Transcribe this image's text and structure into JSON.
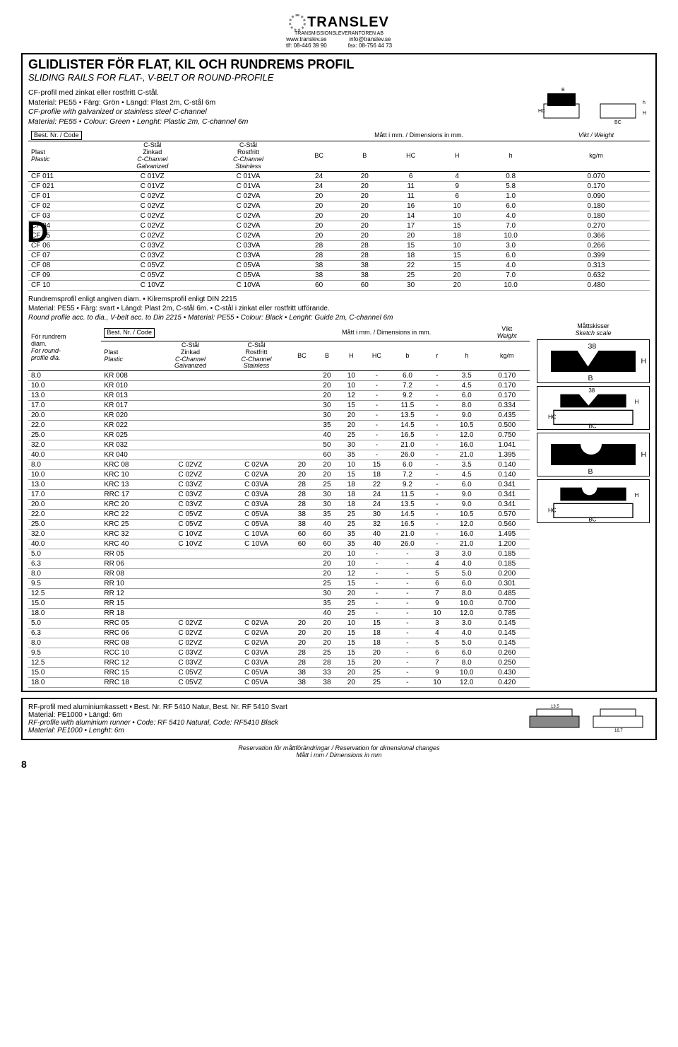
{
  "header": {
    "company": "TRANSLEV",
    "subcompany": "TRANSMISSIONSLEVERANTÖREN AB",
    "web": "www.translev.se",
    "email": "info@translev.se",
    "tel": "tlf: 08-446 39 90",
    "fax": "fax: 08-756 44 73"
  },
  "title": {
    "main": "GLIDLISTER FÖR FLAT, KIL OCH RUNDREMS PROFIL",
    "sub": "SLIDING RAILS FOR FLAT-, V-BELT OR ROUND-PROFILE"
  },
  "s1": {
    "l1": "CF-profil med zinkat eller rostfritt C-stål.",
    "l2": "Material: PE55 • Färg: Grön • Längd: Plast 2m, C-stål 6m",
    "l3": "CF-profile with galvanized or stainless steel C-channel",
    "l4": "Material: PE55 • Colour: Green • Lenght: Plastic 2m, C-channel 6m"
  },
  "t1": {
    "code": "Best. Nr. / Code",
    "h_plast": "Plast",
    "h_plastic": "Plastic",
    "h_z1": "C-Stål",
    "h_z2": "Zinkad",
    "h_z3": "C-Channel",
    "h_z4": "Galvanized",
    "h_r1": "C-Stål",
    "h_r2": "Rostfritt",
    "h_r3": "C-Channel",
    "h_r4": "Stainless",
    "h_dim": "Mått i mm. / Dimensions in mm.",
    "h_w": "Vikt / Weight",
    "h_kg": "kg/m",
    "cols": [
      "BC",
      "B",
      "HC",
      "H",
      "h"
    ],
    "rows": [
      [
        "CF 011",
        "C 01VZ",
        "C 01VA",
        "24",
        "20",
        "6",
        "4",
        "0.8",
        "0.070"
      ],
      [
        "CF 021",
        "C 01VZ",
        "C 01VA",
        "24",
        "20",
        "11",
        "9",
        "5.8",
        "0.170"
      ],
      [
        "CF 01",
        "C 02VZ",
        "C 02VA",
        "20",
        "20",
        "11",
        "6",
        "1.0",
        "0.090"
      ],
      [
        "CF 02",
        "C 02VZ",
        "C 02VA",
        "20",
        "20",
        "16",
        "10",
        "6.0",
        "0.180"
      ],
      [
        "CF 03",
        "C 02VZ",
        "C 02VA",
        "20",
        "20",
        "14",
        "10",
        "4.0",
        "0.180"
      ],
      [
        "CF 04",
        "C 02VZ",
        "C 02VA",
        "20",
        "20",
        "17",
        "15",
        "7.0",
        "0.270"
      ],
      [
        "CF 05",
        "C 02VZ",
        "C 02VA",
        "20",
        "20",
        "20",
        "18",
        "10.0",
        "0.366"
      ],
      [
        "CF 06",
        "C 03VZ",
        "C 03VA",
        "28",
        "28",
        "15",
        "10",
        "3.0",
        "0.266"
      ],
      [
        "CF 07",
        "C 03VZ",
        "C 03VA",
        "28",
        "28",
        "18",
        "15",
        "6.0",
        "0.399"
      ],
      [
        "CF 08",
        "C 05VZ",
        "C 05VA",
        "38",
        "38",
        "22",
        "15",
        "4.0",
        "0.313"
      ],
      [
        "CF 09",
        "C 05VZ",
        "C 05VA",
        "38",
        "38",
        "25",
        "20",
        "7.0",
        "0.632"
      ],
      [
        "CF 10",
        "C 10VZ",
        "C 10VA",
        "60",
        "60",
        "30",
        "20",
        "10.0",
        "0.480"
      ]
    ]
  },
  "note1": {
    "l1": "Rundremsprofil enligt angiven diam. • Kilremsprofil enligt DIN 2215",
    "l2": "Material: PE55 • Färg: svart • Längd: Plast 2m, C-stål 6m. • C-stål i zinkat eller rostfritt utförande.",
    "l3": "Round profile acc. to dia., V-belt acc. to Din 2215 • Material: PE55 • Colour: Black • Lenght: Guide 2m, C-channel 6m"
  },
  "t2": {
    "h_d1": "För rundrem",
    "h_d2": "diam.",
    "h_d3": "For round-",
    "h_d4": "profile dia.",
    "code": "Best. Nr. / Code",
    "h_w": "Vikt",
    "h_we": "Weight",
    "h_kg": "kg/m",
    "h_dim": "Mått i mm. / Dimensions in mm.",
    "cols": [
      "BC",
      "B",
      "H",
      "HC",
      "b",
      "r",
      "h"
    ],
    "sketch_t": "Måttskisser",
    "sketch_s": "Sketch scale",
    "rows": [
      [
        "8.0",
        "KR 008",
        "",
        "",
        "",
        "20",
        "10",
        "-",
        "6.0",
        "-",
        "3.5",
        "0.170"
      ],
      [
        "10.0",
        "KR 010",
        "",
        "",
        "",
        "20",
        "10",
        "-",
        "7.2",
        "-",
        "4.5",
        "0.170"
      ],
      [
        "13.0",
        "KR 013",
        "",
        "",
        "",
        "20",
        "12",
        "-",
        "9.2",
        "-",
        "6.0",
        "0.170"
      ],
      [
        "17.0",
        "KR 017",
        "",
        "",
        "",
        "30",
        "15",
        "-",
        "11.5",
        "-",
        "8.0",
        "0.334"
      ],
      [
        "20.0",
        "KR 020",
        "",
        "",
        "",
        "30",
        "20",
        "-",
        "13.5",
        "-",
        "9.0",
        "0.435"
      ],
      [
        "22.0",
        "KR 022",
        "",
        "",
        "",
        "35",
        "20",
        "-",
        "14.5",
        "-",
        "10.5",
        "0.500"
      ],
      [
        "25.0",
        "KR 025",
        "",
        "",
        "",
        "40",
        "25",
        "-",
        "16.5",
        "-",
        "12.0",
        "0.750"
      ],
      [
        "32.0",
        "KR 032",
        "",
        "",
        "",
        "50",
        "30",
        "-",
        "21.0",
        "-",
        "16.0",
        "1.041"
      ],
      [
        "40.0",
        "KR 040",
        "",
        "",
        "",
        "60",
        "35",
        "-",
        "26.0",
        "-",
        "21.0",
        "1.395"
      ],
      [
        "8.0",
        "KRC 08",
        "C 02VZ",
        "C 02VA",
        "20",
        "20",
        "10",
        "15",
        "6.0",
        "-",
        "3.5",
        "0.140"
      ],
      [
        "10.0",
        "KRC 10",
        "C 02VZ",
        "C 02VA",
        "20",
        "20",
        "15",
        "18",
        "7.2",
        "-",
        "4.5",
        "0.140"
      ],
      [
        "13.0",
        "KRC 13",
        "C 03VZ",
        "C 03VA",
        "28",
        "25",
        "18",
        "22",
        "9.2",
        "-",
        "6.0",
        "0.341"
      ],
      [
        "17.0",
        "RRC 17",
        "C 03VZ",
        "C 03VA",
        "28",
        "30",
        "18",
        "24",
        "11.5",
        "-",
        "9.0",
        "0.341"
      ],
      [
        "20.0",
        "KRC 20",
        "C 03VZ",
        "C 03VA",
        "28",
        "30",
        "18",
        "24",
        "13.5",
        "-",
        "9.0",
        "0.341"
      ],
      [
        "22.0",
        "KRC 22",
        "C 05VZ",
        "C 05VA",
        "38",
        "35",
        "25",
        "30",
        "14.5",
        "-",
        "10.5",
        "0.570"
      ],
      [
        "25.0",
        "KRC 25",
        "C 05VZ",
        "C 05VA",
        "38",
        "40",
        "25",
        "32",
        "16.5",
        "-",
        "12.0",
        "0.560"
      ],
      [
        "32.0",
        "KRC 32",
        "C 10VZ",
        "C 10VA",
        "60",
        "60",
        "35",
        "40",
        "21.0",
        "-",
        "16.0",
        "1.495"
      ],
      [
        "40.0",
        "KRC 40",
        "C 10VZ",
        "C 10VA",
        "60",
        "60",
        "35",
        "40",
        "26.0",
        "-",
        "21.0",
        "1.200"
      ],
      [
        "5.0",
        "RR 05",
        "",
        "",
        "",
        "20",
        "10",
        "-",
        "-",
        "3",
        "3.0",
        "0.185"
      ],
      [
        "6.3",
        "RR 06",
        "",
        "",
        "",
        "20",
        "10",
        "-",
        "-",
        "4",
        "4.0",
        "0.185"
      ],
      [
        "8.0",
        "RR 08",
        "",
        "",
        "",
        "20",
        "12",
        "-",
        "-",
        "5",
        "5.0",
        "0.200"
      ],
      [
        "9.5",
        "RR 10",
        "",
        "",
        "",
        "25",
        "15",
        "-",
        "-",
        "6",
        "6.0",
        "0.301"
      ],
      [
        "12.5",
        "RR 12",
        "",
        "",
        "",
        "30",
        "20",
        "-",
        "-",
        "7",
        "8.0",
        "0.485"
      ],
      [
        "15.0",
        "RR 15",
        "",
        "",
        "",
        "35",
        "25",
        "-",
        "-",
        "9",
        "10.0",
        "0.700"
      ],
      [
        "18.0",
        "RR 18",
        "",
        "",
        "",
        "40",
        "25",
        "-",
        "-",
        "10",
        "12.0",
        "0.785"
      ],
      [
        "5.0",
        "RRC 05",
        "C 02VZ",
        "C 02VA",
        "20",
        "20",
        "10",
        "15",
        "-",
        "3",
        "3.0",
        "0.145"
      ],
      [
        "6.3",
        "RRC 06",
        "C 02VZ",
        "C 02VA",
        "20",
        "20",
        "15",
        "18",
        "-",
        "4",
        "4.0",
        "0.145"
      ],
      [
        "8.0",
        "RRC 08",
        "C 02VZ",
        "C 02VA",
        "20",
        "20",
        "15",
        "18",
        "-",
        "5",
        "5.0",
        "0.145"
      ],
      [
        "9.5",
        "RCC 10",
        "C 03VZ",
        "C 03VA",
        "28",
        "25",
        "15",
        "20",
        "-",
        "6",
        "6.0",
        "0.260"
      ],
      [
        "12.5",
        "RRC 12",
        "C 03VZ",
        "C 03VA",
        "28",
        "28",
        "15",
        "20",
        "-",
        "7",
        "8.0",
        "0.250"
      ],
      [
        "15.0",
        "RRC 15",
        "C 05VZ",
        "C 05VA",
        "38",
        "33",
        "20",
        "25",
        "-",
        "9",
        "10.0",
        "0.430"
      ],
      [
        "18.0",
        "RRC 18",
        "C 05VZ",
        "C 05VA",
        "38",
        "38",
        "20",
        "25",
        "-",
        "10",
        "12.0",
        "0.420"
      ]
    ]
  },
  "box2": {
    "l1": "RF-profil med aluminiumkassett • Best. Nr. RF 5410 Natur, Best. Nr. RF 5410 Svart",
    "l2": "Material: PE1000 • Längd: 6m",
    "l3": "RF-profile with aluminium runner • Code: RF 5410 Natural, Code: RF5410 Black",
    "l4": "Material: PE1000 • Lenght: 6m"
  },
  "footer": {
    "l1": "Reservation för måttförändringar  /  Reservation for dimensional changes",
    "l2": "Mått i mm  /  Dimensions in mm",
    "page": "8"
  }
}
